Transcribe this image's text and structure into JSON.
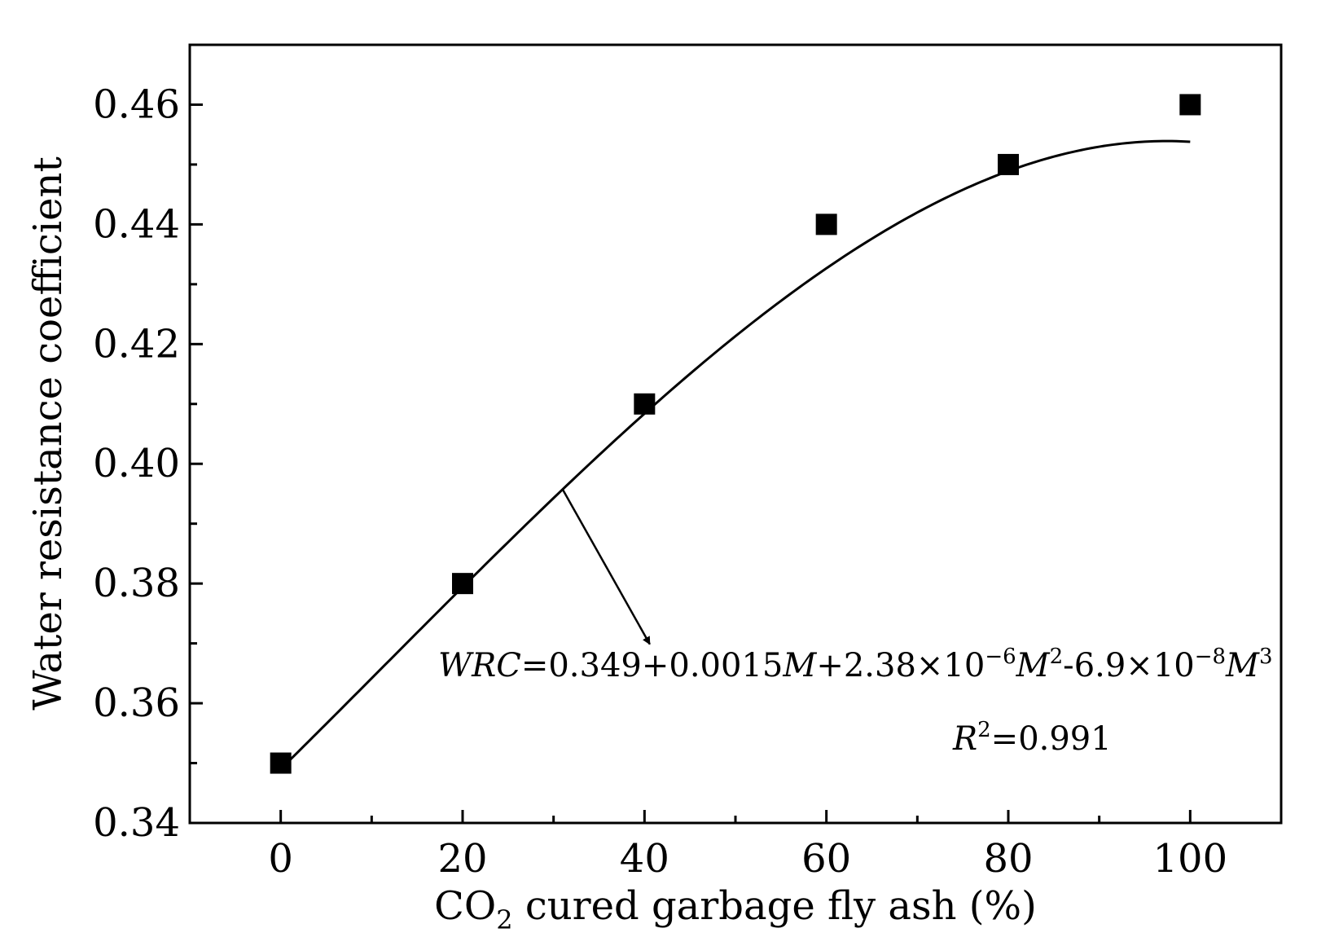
{
  "chart_data": {
    "type": "scatter",
    "xlabel": {
      "pre": "CO",
      "sub": "2",
      "post": " cured garbage fly ash (%)"
    },
    "ylabel": "Water resistance coefficient",
    "xlim": [
      -10,
      110
    ],
    "ylim": [
      0.34,
      0.47
    ],
    "xticks": [
      0,
      20,
      40,
      60,
      80,
      100
    ],
    "xtick_labels": [
      "0",
      "20",
      "40",
      "60",
      "80",
      "100"
    ],
    "xminor_ticks": [
      10,
      30,
      50,
      70,
      90
    ],
    "yticks": [
      0.34,
      0.36,
      0.38,
      0.4,
      0.42,
      0.44,
      0.46
    ],
    "ytick_labels": [
      "0.34",
      "0.36",
      "0.38",
      "0.40",
      "0.42",
      "0.44",
      "0.46"
    ],
    "yminor_ticks": [
      0.35,
      0.37,
      0.39,
      0.41,
      0.43,
      0.45
    ],
    "series": [
      {
        "marker": "square",
        "x": [
          0,
          20,
          40,
          60,
          80,
          100
        ],
        "y": [
          0.35,
          0.38,
          0.41,
          0.44,
          0.45,
          0.46
        ]
      }
    ],
    "fit": {
      "model": "cubic",
      "coefficients": [
        0.349,
        0.0015,
        2.38e-06,
        -6.9e-08
      ],
      "x_range": [
        0,
        100
      ]
    },
    "annotations": {
      "equation": [
        "WRC",
        "=0.349+0.0015",
        "M",
        "+2.38×10",
        "−6",
        "M",
        "2",
        "-6.9×10",
        "−8",
        "M",
        "3"
      ],
      "r2": [
        "R",
        "2",
        "=0.991"
      ]
    },
    "grid": false,
    "legend": "none",
    "colors": {
      "marker": "#000000",
      "line": "#000000"
    }
  }
}
